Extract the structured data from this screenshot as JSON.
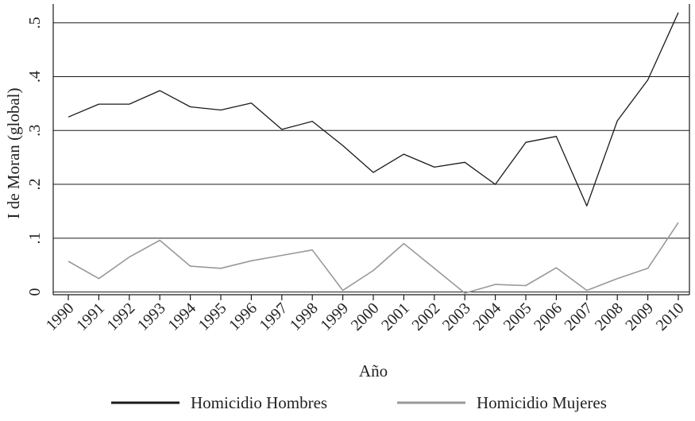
{
  "chart_data": {
    "type": "line",
    "title": "",
    "xlabel": "Año",
    "ylabel": "I de Moran (global)",
    "x": [
      "1990",
      "1991",
      "1992",
      "1993",
      "1994",
      "1995",
      "1996",
      "1997",
      "1998",
      "1999",
      "2000",
      "2001",
      "2002",
      "2003",
      "2004",
      "2005",
      "2006",
      "2007",
      "2008",
      "2009",
      "2010"
    ],
    "yticks": [
      0,
      0.1,
      0.2,
      0.3,
      0.4,
      0.5
    ],
    "ytick_labels": [
      "0",
      ".1",
      ".2",
      ".3",
      ".4",
      ".5"
    ],
    "ylim": [
      -0.005,
      0.535
    ],
    "grid": true,
    "legend_position": "bottom",
    "series": [
      {
        "name": "Homicidio Hombres",
        "color": "#1a1a1a",
        "values": [
          0.325,
          0.349,
          0.349,
          0.374,
          0.344,
          0.338,
          0.351,
          0.302,
          0.317,
          0.272,
          0.222,
          0.256,
          0.232,
          0.241,
          0.2,
          0.278,
          0.289,
          0.16,
          0.318,
          0.394,
          0.519
        ]
      },
      {
        "name": "Homicidio Mujeres",
        "color": "#999999",
        "values": [
          0.057,
          0.025,
          0.065,
          0.096,
          0.048,
          0.044,
          0.058,
          0.068,
          0.078,
          0.003,
          0.04,
          0.09,
          0.044,
          -0.002,
          0.014,
          0.012,
          0.045,
          0.003,
          0.025,
          0.044,
          0.129
        ]
      }
    ]
  }
}
